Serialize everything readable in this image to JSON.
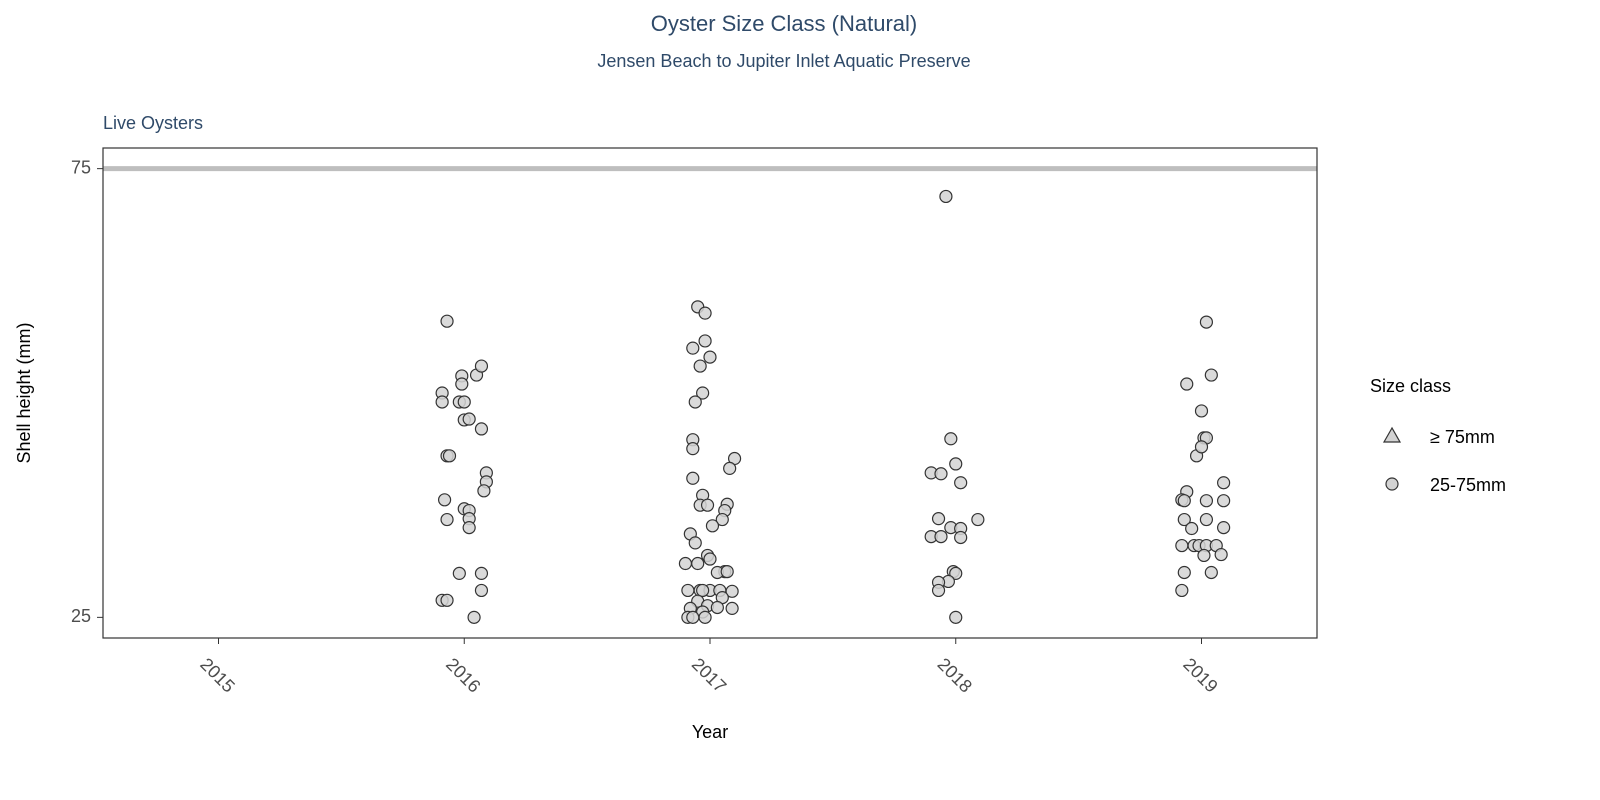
{
  "chart_data": {
    "type": "scatter",
    "title": "Oyster Size Class (Natural)",
    "subtitle": "Jensen Beach to Jupiter Inlet Aquatic Preserve",
    "panel_title": "Live Oysters",
    "x_label": "Year",
    "y_label": "Shell height (mm)",
    "legend_title": "Size class",
    "xlim": [
      2014.53,
      2019.47
    ],
    "xticks": [
      2015,
      2016,
      2017,
      2018,
      2019
    ],
    "ylim": [
      22.7,
      77.3
    ],
    "yticks": [
      25,
      75
    ],
    "hline": 75,
    "hline_color": "#bebebe",
    "series": [
      {
        "name": "≥ 75mm",
        "shape": "triangle",
        "color": "#d3d3d3",
        "x": [],
        "y": []
      },
      {
        "name": "25-75mm",
        "shape": "circle",
        "color": "#d3d3d3",
        "x": [
          2015.93,
          2015.91,
          2015.91,
          2015.99,
          2016.05,
          2016.07,
          2015.99,
          2015.98,
          2016.0,
          2016.0,
          2016.02,
          2016.07,
          2015.93,
          2015.94,
          2016.09,
          2016.09,
          2016.08,
          2015.92,
          2016.0,
          2016.02,
          2016.02,
          2015.93,
          2016.02,
          2015.98,
          2016.07,
          2015.91,
          2015.93,
          2016.07,
          2016.04,
          2016.95,
          2016.98,
          2016.98,
          2016.93,
          2017.0,
          2016.96,
          2016.97,
          2016.94,
          2016.93,
          2016.93,
          2017.1,
          2017.08,
          2016.93,
          2016.97,
          2016.96,
          2016.99,
          2017.07,
          2017.06,
          2017.05,
          2017.01,
          2016.92,
          2016.94,
          2016.99,
          2017.0,
          2016.9,
          2016.95,
          2017.06,
          2017.03,
          2017.07,
          2016.91,
          2016.96,
          2017.0,
          2016.97,
          2017.09,
          2017.04,
          2017.05,
          2016.95,
          2016.99,
          2016.92,
          2017.03,
          2017.09,
          2016.97,
          2016.91,
          2016.93,
          2016.98,
          2017.96,
          2017.98,
          2017.9,
          2017.94,
          2018.0,
          2018.02,
          2017.93,
          2018.09,
          2017.98,
          2018.02,
          2017.9,
          2017.94,
          2018.02,
          2017.99,
          2018.0,
          2017.97,
          2017.93,
          2017.93,
          2018.0,
          2019.02,
          2018.94,
          2019.04,
          2019.0,
          2019.01,
          2019.02,
          2018.98,
          2019.0,
          2019.09,
          2018.94,
          2018.92,
          2018.93,
          2019.02,
          2019.09,
          2018.93,
          2019.02,
          2018.96,
          2019.09,
          2018.92,
          2018.97,
          2018.99,
          2019.02,
          2019.06,
          2019.01,
          2019.08,
          2018.93,
          2019.04,
          2018.92
        ],
        "y": [
          58.0,
          50.0,
          49.0,
          51.9,
          52.0,
          53.0,
          51.0,
          49.0,
          49.0,
          47.0,
          47.1,
          46.0,
          43.0,
          43.0,
          41.1,
          40.1,
          39.1,
          38.1,
          37.1,
          36.9,
          36.0,
          35.9,
          35.0,
          29.9,
          29.9,
          26.9,
          26.9,
          28.0,
          25.0,
          59.6,
          58.9,
          55.8,
          55.0,
          54.0,
          53.0,
          50.0,
          49.0,
          44.8,
          43.8,
          42.7,
          41.6,
          40.5,
          38.6,
          37.5,
          37.5,
          37.6,
          36.9,
          35.9,
          35.2,
          34.3,
          33.3,
          31.9,
          31.5,
          31.0,
          31.0,
          30.1,
          30.0,
          30.1,
          28.0,
          28.0,
          28.0,
          28.0,
          27.9,
          28.0,
          27.2,
          26.8,
          26.3,
          26.0,
          26.1,
          26.0,
          25.6,
          25.0,
          25.0,
          25.0,
          71.9,
          44.9,
          41.1,
          41.0,
          42.1,
          40.0,
          36.0,
          35.9,
          35.0,
          34.9,
          34.0,
          34.0,
          33.9,
          30.1,
          29.9,
          29.0,
          28.9,
          28.0,
          25.0,
          57.9,
          51.0,
          52.0,
          48.0,
          45.0,
          45.0,
          43.0,
          44.0,
          40.0,
          39.0,
          38.1,
          38.0,
          38.0,
          38.0,
          35.9,
          35.9,
          34.9,
          35.0,
          33.0,
          33.0,
          33.0,
          33.0,
          33.0,
          31.9,
          32.0,
          30.0,
          30.0,
          28.0
        ]
      }
    ]
  }
}
